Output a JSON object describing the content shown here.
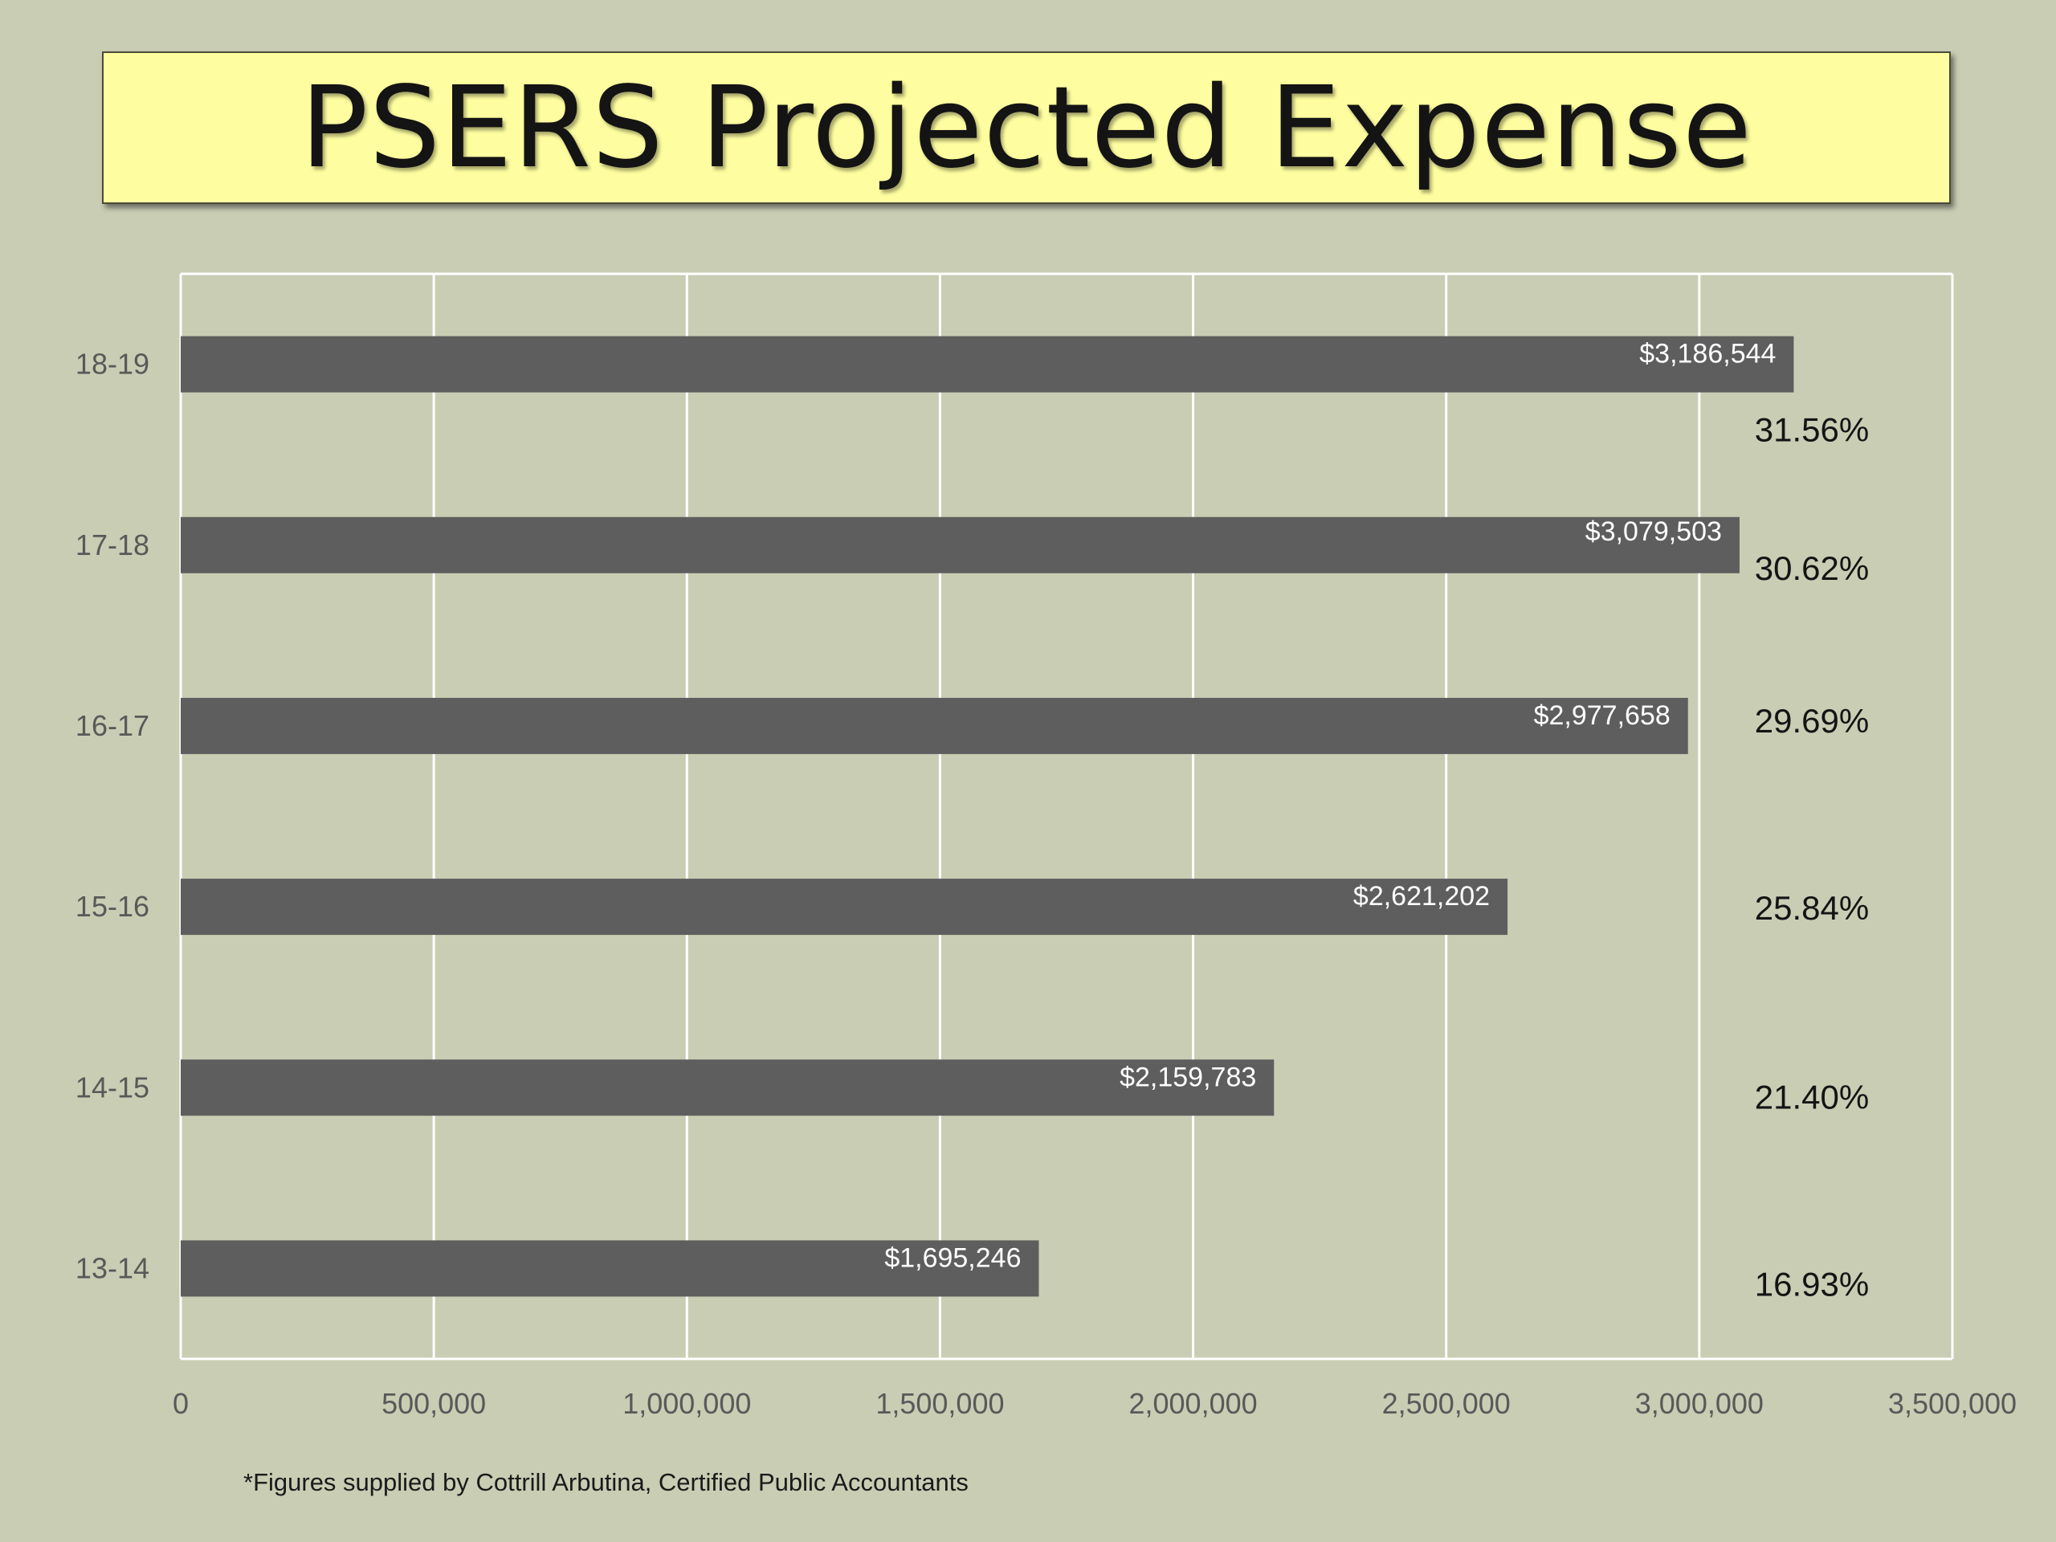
{
  "title": "PSERS Projected Expense",
  "footnote": "*Figures supplied by Cottrill Arbutina, Certified Public Accountants",
  "colors": {
    "background": "#c9cdb3",
    "title_fill": "#fefea0",
    "bar": "#5e5e5e",
    "gridline": "#ffffff",
    "axis_text": "#595959",
    "bar_label": "#ffffff",
    "percent_text": "#141414"
  },
  "chart_data": {
    "type": "bar",
    "orientation": "horizontal",
    "title": "PSERS Projected Expense",
    "categories": [
      "13-14",
      "14-15",
      "15-16",
      "16-17",
      "17-18",
      "18-19"
    ],
    "values": [
      1695246,
      2159783,
      2621202,
      2977658,
      3079503,
      3186544
    ],
    "data_labels": [
      "$1,695,246",
      "$2,159,783",
      "$2,621,202",
      "$2,977,658",
      "$3,079,503",
      "$3,186,544"
    ],
    "percent_labels": [
      "16.93%",
      "21.40%",
      "25.84%",
      "29.69%",
      "30.62%",
      "31.56%"
    ],
    "xlim": [
      0,
      3500000
    ],
    "x_ticks": [
      0,
      500000,
      1000000,
      1500000,
      2000000,
      2500000,
      3000000,
      3500000
    ],
    "x_tick_labels": [
      "0",
      "500,000",
      "1,000,000",
      "1,500,000",
      "2,000,000",
      "2,500,000",
      "3,000,000",
      "3,500,000"
    ],
    "xlabel": "",
    "ylabel": "",
    "grid": true,
    "legend": "none"
  }
}
